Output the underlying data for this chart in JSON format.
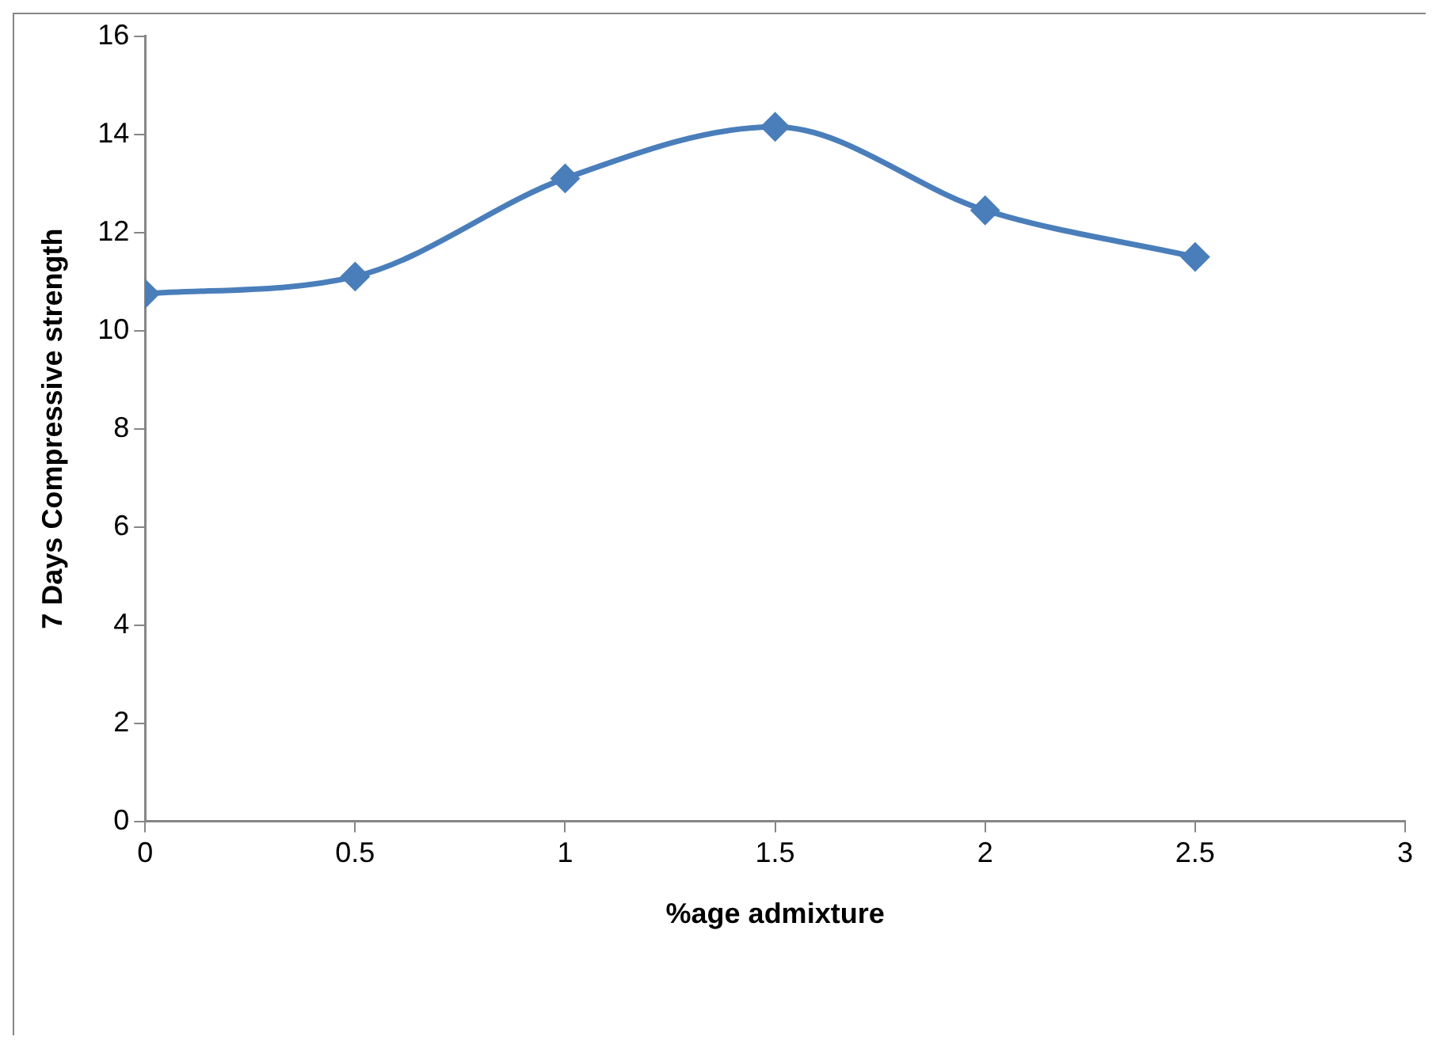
{
  "chart_data": {
    "type": "line",
    "xlabel": "%age admixture",
    "ylabel": "7 Days Compressive strength",
    "x": [
      0,
      0.5,
      1,
      1.5,
      2,
      2.5
    ],
    "series": [
      {
        "color": "#4a7ebb",
        "values": [
          10.75,
          11.1,
          13.1,
          14.15,
          12.45,
          11.5
        ]
      }
    ],
    "xlim": [
      0,
      3
    ],
    "xticks": [
      0,
      0.5,
      1,
      1.5,
      2,
      2.5,
      3
    ],
    "ylim": [
      0,
      16
    ],
    "yticks": [
      0,
      2,
      4,
      6,
      8,
      10,
      12,
      14,
      16
    ],
    "grid": false,
    "legend": false,
    "marker": "diamond",
    "line_style": "solid"
  }
}
